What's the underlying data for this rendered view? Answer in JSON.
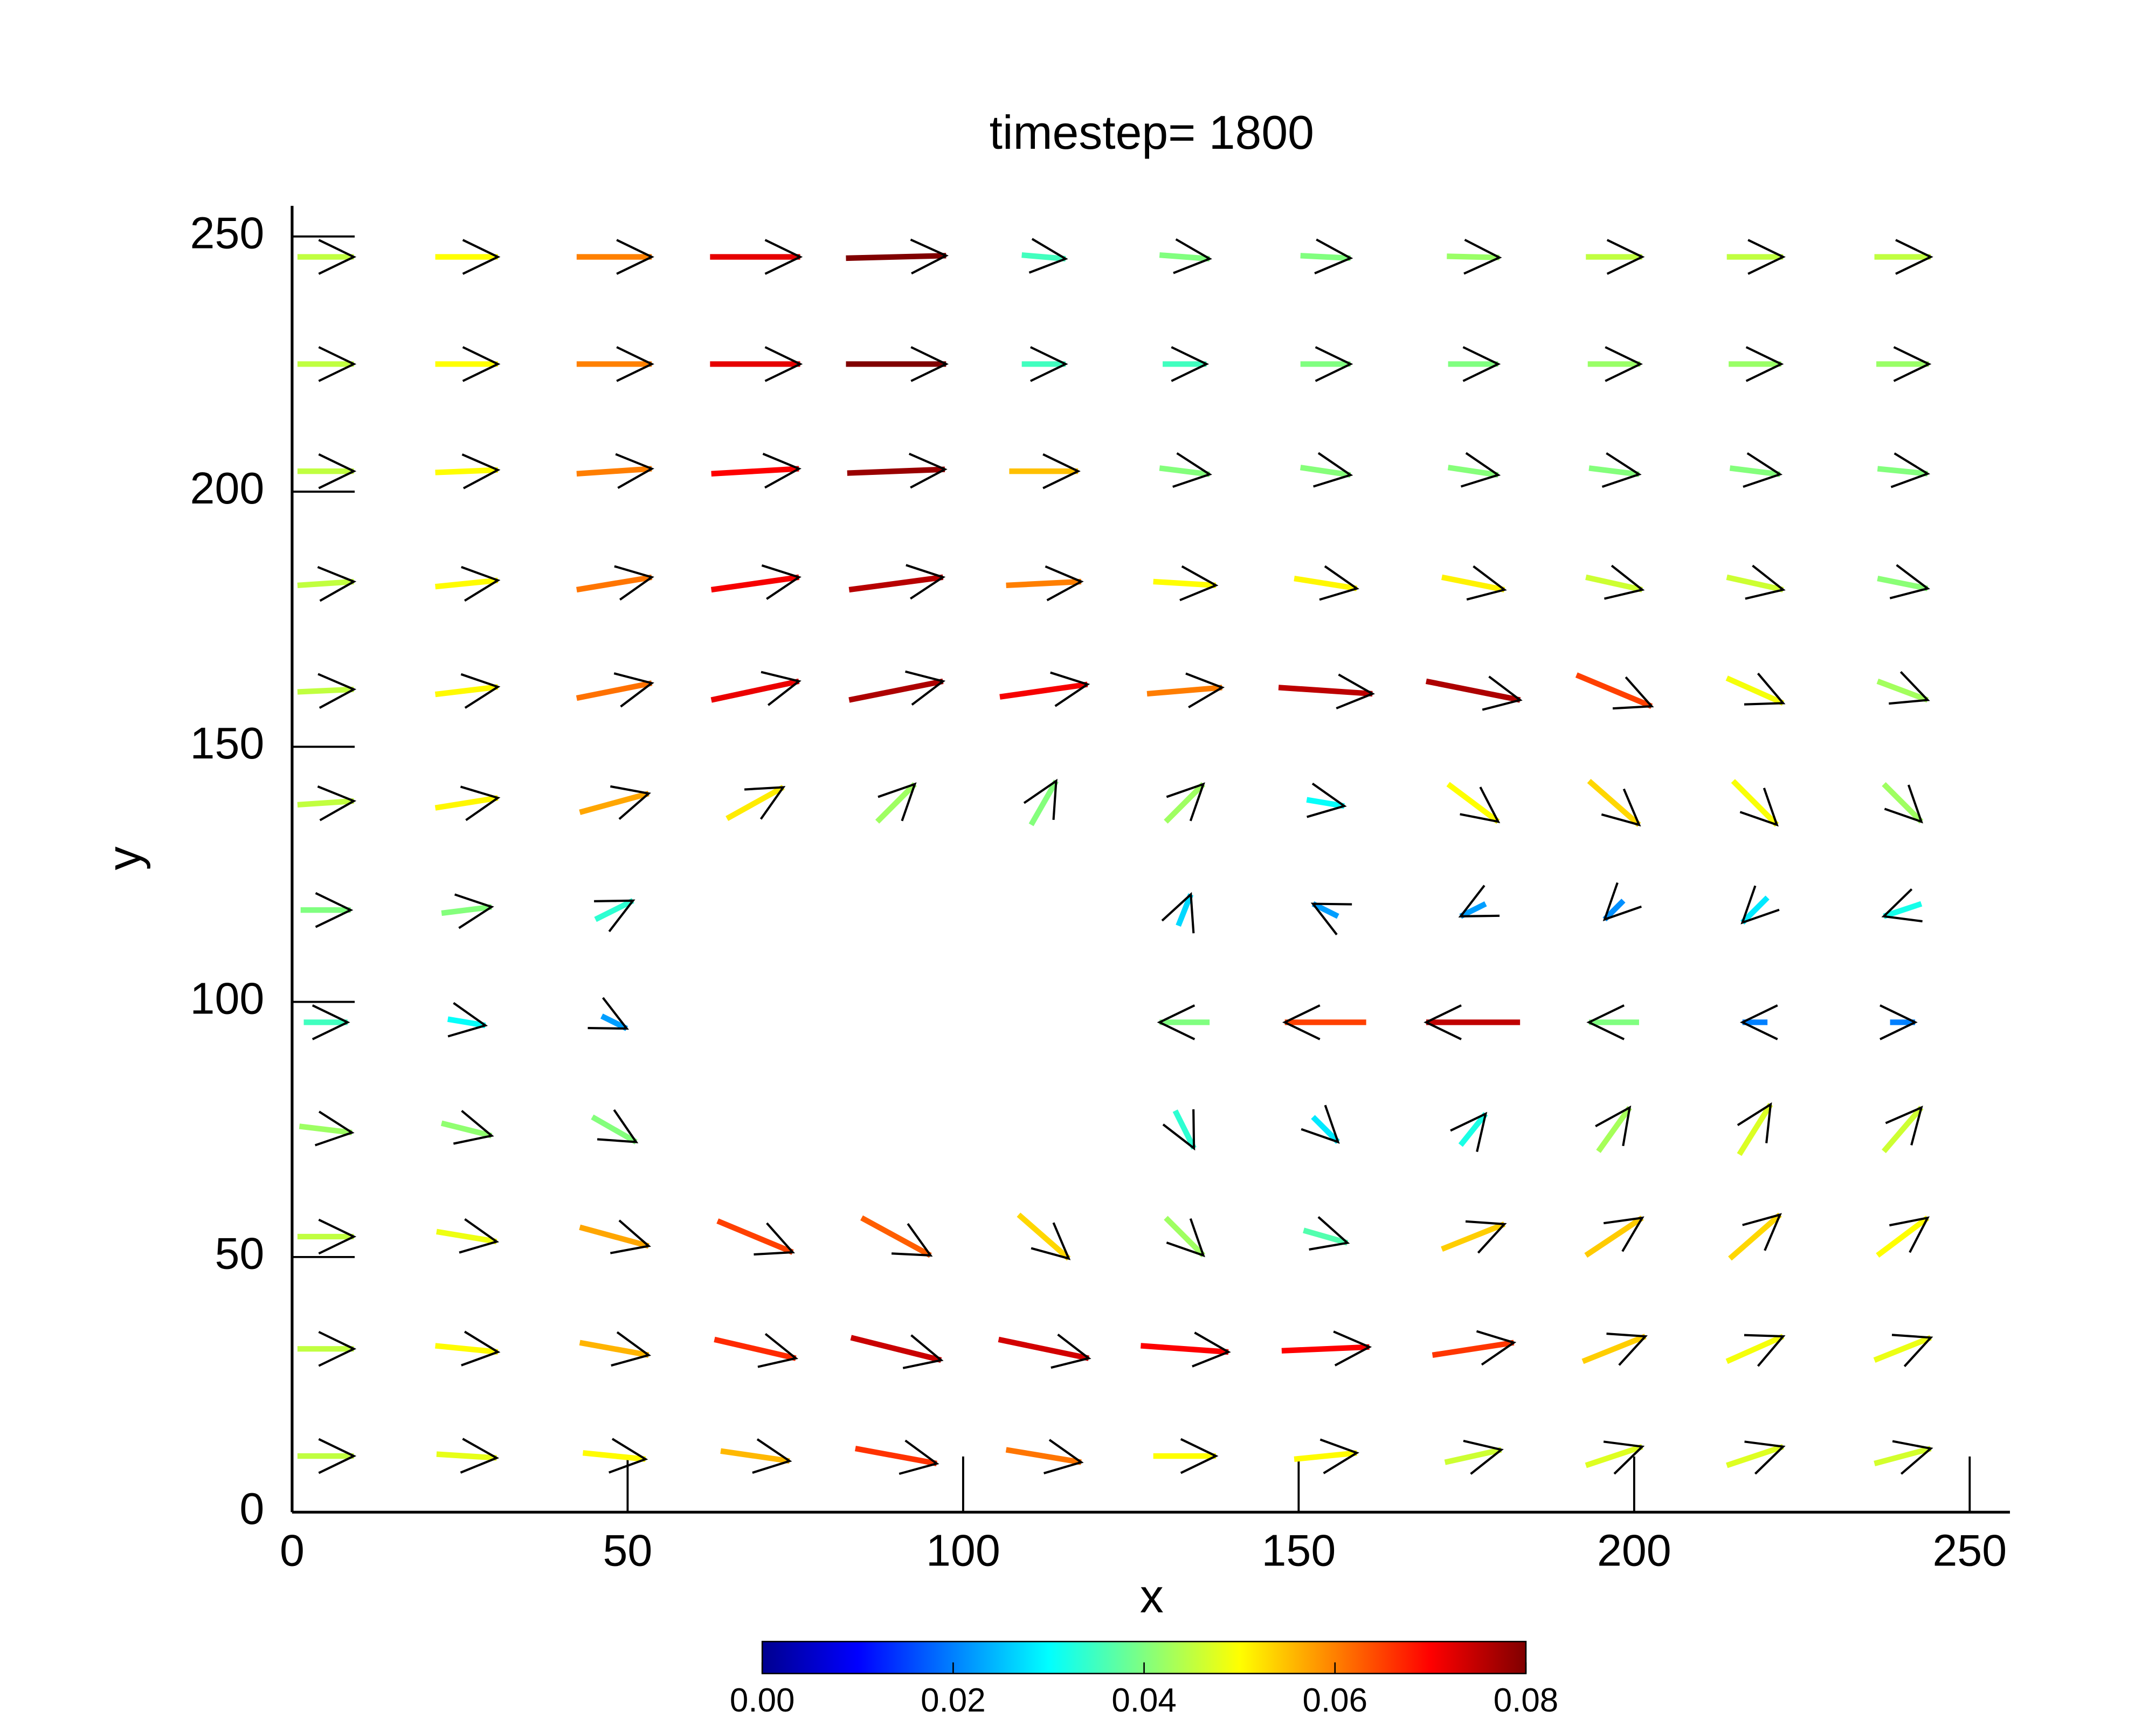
{
  "chart_data": {
    "type": "quiver",
    "title": "timestep= 1800",
    "x_label": "x",
    "y_label": "y",
    "xlim": [
      0,
      256
    ],
    "ylim": [
      0,
      256
    ],
    "xticks": [
      0,
      50,
      100,
      150,
      200,
      250
    ],
    "yticks": [
      0,
      50,
      100,
      150,
      200,
      250
    ],
    "x": [
      5,
      26,
      48,
      69,
      90,
      112,
      133,
      154,
      176,
      197,
      218,
      240
    ],
    "y": [
      11,
      32,
      54,
      75,
      96,
      118,
      139,
      161,
      182,
      204,
      225,
      246
    ],
    "u": [
      [
        0.045,
        0.048,
        0.05,
        0.055,
        0.065,
        0.06,
        0.05,
        0.05,
        0.045,
        0.045,
        0.045,
        0.045
      ],
      [
        0.045,
        0.05,
        0.055,
        0.065,
        0.072,
        0.072,
        0.07,
        0.07,
        0.065,
        0.05,
        0.045,
        0.045
      ],
      [
        0.045,
        0.048,
        0.055,
        0.06,
        0.055,
        0.04,
        0.03,
        0.035,
        0.05,
        0.045,
        0.04,
        0.04
      ],
      [
        0.042,
        0.04,
        0.035,
        null,
        null,
        null,
        0.015,
        0.02,
        0.02,
        0.025,
        0.025,
        0.03
      ],
      [
        0.035,
        0.03,
        0.02,
        null,
        null,
        null,
        -0.04,
        -0.065,
        -0.075,
        -0.04,
        -0.02,
        0.02
      ],
      [
        0.04,
        0.04,
        0.03,
        null,
        null,
        null,
        0.01,
        -0.02,
        -0.02,
        -0.015,
        -0.02,
        -0.03
      ],
      [
        0.045,
        0.05,
        0.055,
        0.045,
        0.03,
        0.02,
        0.03,
        0.03,
        0.04,
        0.04,
        0.035,
        0.03
      ],
      [
        0.045,
        0.05,
        0.06,
        0.07,
        0.075,
        0.07,
        0.06,
        0.075,
        0.075,
        0.06,
        0.045,
        0.04
      ],
      [
        0.045,
        0.05,
        0.06,
        0.07,
        0.075,
        0.06,
        0.05,
        0.05,
        0.05,
        0.045,
        0.045,
        0.04
      ],
      [
        0.045,
        0.05,
        0.06,
        0.07,
        0.078,
        0.055,
        0.04,
        0.04,
        0.04,
        0.04,
        0.04,
        0.04
      ],
      [
        0.045,
        0.05,
        0.06,
        0.072,
        0.08,
        0.035,
        0.035,
        0.04,
        0.04,
        0.042,
        0.042,
        0.042
      ],
      [
        0.045,
        0.05,
        0.06,
        0.072,
        0.08,
        0.035,
        0.04,
        0.04,
        0.042,
        0.045,
        0.045,
        0.045
      ]
    ],
    "v": [
      [
        0,
        -0.003,
        -0.005,
        -0.008,
        -0.012,
        -0.01,
        0,
        0.005,
        0.01,
        0.015,
        0.015,
        0.012
      ],
      [
        0,
        -0.005,
        -0.01,
        -0.015,
        -0.018,
        -0.015,
        -0.005,
        0.003,
        0.01,
        0.02,
        0.02,
        0.018
      ],
      [
        0,
        -0.008,
        -0.015,
        -0.025,
        -0.03,
        -0.035,
        -0.03,
        -0.01,
        0.02,
        0.03,
        0.035,
        0.03
      ],
      [
        -0.005,
        -0.01,
        -0.02,
        null,
        null,
        null,
        -0.03,
        -0.02,
        0.025,
        0.035,
        0.04,
        0.035
      ],
      [
        0,
        -0.005,
        -0.01,
        null,
        null,
        null,
        0,
        0,
        0,
        0,
        0,
        0
      ],
      [
        0,
        0.005,
        0.015,
        null,
        null,
        null,
        0.025,
        0.01,
        -0.01,
        -0.015,
        -0.02,
        -0.01
      ],
      [
        0.003,
        0.008,
        0.015,
        0.025,
        0.03,
        0.035,
        0.03,
        -0.005,
        -0.03,
        -0.035,
        -0.035,
        -0.03
      ],
      [
        0.002,
        0.006,
        0.012,
        0.015,
        0.015,
        0.01,
        0.005,
        -0.005,
        -0.015,
        -0.025,
        -0.02,
        -0.015
      ],
      [
        0.003,
        0.005,
        0.01,
        0.01,
        0.01,
        0.003,
        -0.003,
        -0.008,
        -0.01,
        -0.01,
        -0.01,
        -0.008
      ],
      [
        0,
        0.002,
        0.004,
        0.004,
        0.003,
        0,
        -0.005,
        -0.006,
        -0.006,
        -0.005,
        -0.005,
        -0.004
      ],
      [
        0,
        0,
        0,
        0,
        0,
        0,
        0,
        0,
        0,
        0,
        0,
        0
      ],
      [
        0,
        0,
        0,
        0,
        0.002,
        -0.003,
        -0.003,
        -0.002,
        -0.001,
        0,
        0,
        0
      ]
    ],
    "colorbar": {
      "clim": [
        0,
        0.08
      ],
      "ticks": [
        {
          "value": 0,
          "label": "0.00"
        },
        {
          "value": 0.02,
          "label": "0.02"
        },
        {
          "value": 0.04,
          "label": "0.04"
        },
        {
          "value": 0.06,
          "label": "0.06"
        },
        {
          "value": 0.08,
          "label": "0.08"
        }
      ],
      "colormap": [
        "#00008f",
        "#0000ff",
        "#0080ff",
        "#00ffff",
        "#80ff80",
        "#ffff00",
        "#ff8000",
        "#ff0000",
        "#800000"
      ]
    }
  }
}
